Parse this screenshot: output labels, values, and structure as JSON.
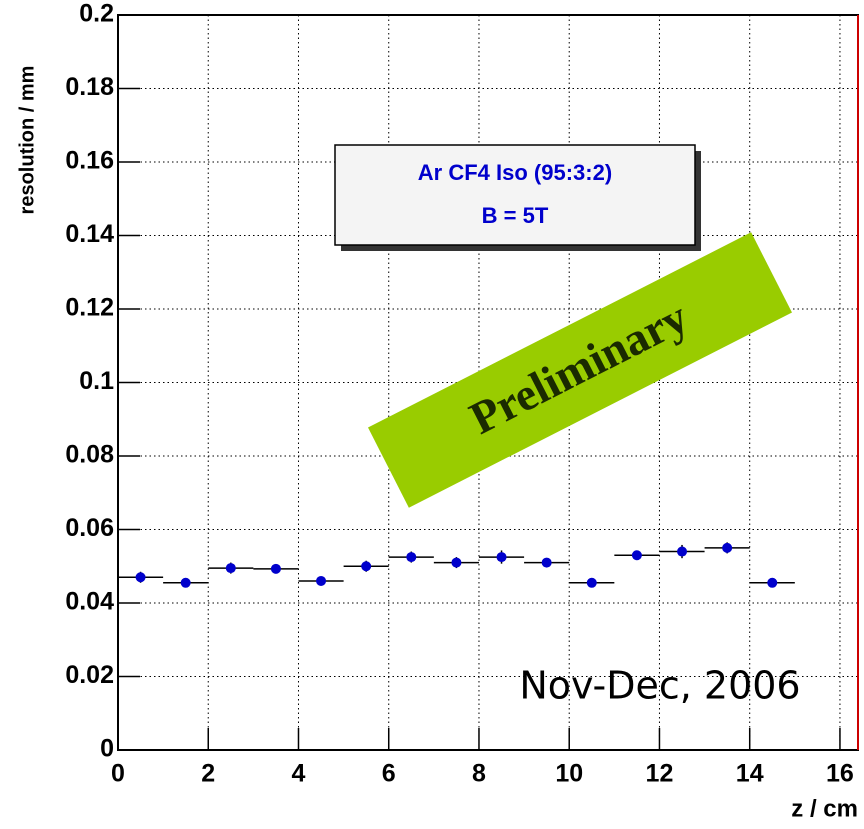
{
  "chart_data": {
    "type": "scatter",
    "x_label": "z / cm",
    "y_label": "resolution / mm",
    "annotations": [
      "Ar CF4 Iso (95:3:2)",
      "B = 5T",
      "Preliminary",
      "Nov-Dec, 2006"
    ],
    "x": [
      0.5,
      1.5,
      2.5,
      3.5,
      4.5,
      5.5,
      6.5,
      7.5,
      8.5,
      9.5,
      10.5,
      11.5,
      12.5,
      13.5,
      14.5
    ],
    "xerr": [
      0.5,
      0.5,
      0.5,
      0.5,
      0.5,
      0.5,
      0.5,
      0.5,
      0.5,
      0.5,
      0.5,
      0.5,
      0.5,
      0.5,
      0.5
    ],
    "values": [
      0.047,
      0.0455,
      0.0495,
      0.0493,
      0.046,
      0.05,
      0.0525,
      0.051,
      0.0525,
      0.051,
      0.0455,
      0.053,
      0.054,
      0.055,
      0.0455
    ],
    "yerr": [
      0.0015,
      0.001,
      0.0015,
      0.0012,
      0.001,
      0.0015,
      0.0015,
      0.0015,
      0.0018,
      0.0012,
      0.001,
      0.0012,
      0.0018,
      0.0015,
      0.0012
    ],
    "color": "#0000cc",
    "xlim": [
      0,
      16.4
    ],
    "ylim": [
      0,
      0.2
    ],
    "xticks": [
      0,
      2,
      4,
      6,
      8,
      10,
      12,
      14,
      16
    ],
    "yticks": [
      0,
      0.02,
      0.04,
      0.06,
      0.08,
      0.1,
      0.12,
      0.14,
      0.16,
      0.18,
      0.2
    ],
    "grid": true
  }
}
